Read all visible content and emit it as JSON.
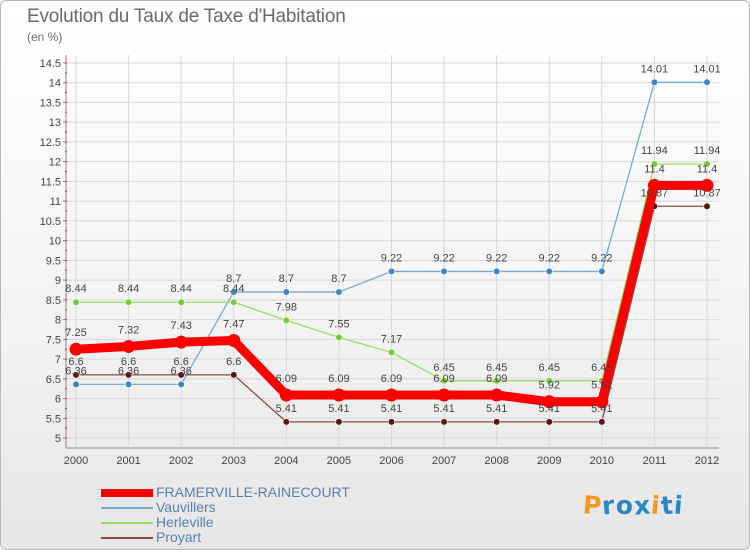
{
  "header": {
    "title": "Evolution du Taux de Taxe d'Habitation",
    "subtitle": "(en %)"
  },
  "logo": {
    "letters": [
      "P",
      "r",
      "o",
      "x",
      "i",
      "t",
      "i"
    ],
    "colors": [
      "#f39a1b",
      "#2b86c7",
      "#2b86c7",
      "#2b86c7",
      "#f39a1b",
      "#2b86c7",
      "#2b86c7"
    ]
  },
  "chart_data": {
    "type": "line",
    "title": "Evolution du Taux de Taxe d'Habitation",
    "ylabel": "(en %)",
    "xlabel": "",
    "x": [
      "2000",
      "2001",
      "2002",
      "2003",
      "2004",
      "2005",
      "2006",
      "2007",
      "2008",
      "2009",
      "2010",
      "2011",
      "2012"
    ],
    "ylim": [
      4.9,
      14.6
    ],
    "yticks": [
      5,
      5.5,
      6,
      6.5,
      7,
      7.5,
      8,
      8.5,
      9,
      9.5,
      10,
      10.5,
      11,
      11.5,
      12,
      12.5,
      13,
      13.5,
      14,
      14.5
    ],
    "grid": true,
    "legend_position": "bottom-left",
    "series": [
      {
        "name": "FRAMERVILLE-RAINECOURT",
        "color": "#ff0000",
        "emphasis": true,
        "values": [
          7.25,
          7.32,
          7.43,
          7.47,
          6.09,
          6.09,
          6.09,
          6.09,
          6.09,
          5.92,
          5.92,
          11.4,
          11.4
        ],
        "labels": [
          "7.25",
          "7.32",
          "7.43",
          "7.47",
          "6.09",
          "6.09",
          "6.09",
          "6.09",
          "6.09",
          "5.92",
          "5.92",
          "11.4",
          "11.4"
        ]
      },
      {
        "name": "Vauvillers",
        "color": "#7aaad2",
        "marker": "#3f85c2",
        "values": [
          6.36,
          6.36,
          6.36,
          8.7,
          8.7,
          8.7,
          9.22,
          9.22,
          9.22,
          9.22,
          9.22,
          14.01,
          14.01
        ],
        "labels": [
          "6.36",
          "6.36",
          "6.36",
          "8.7",
          "8.7",
          "8.7",
          "9.22",
          "9.22",
          "9.22",
          "9.22",
          "9.22",
          "14.01",
          "14.01"
        ]
      },
      {
        "name": "Herleville",
        "color": "#99dd66",
        "marker": "#78c83a",
        "values": [
          8.44,
          8.44,
          8.44,
          8.44,
          7.98,
          7.55,
          7.17,
          6.45,
          6.45,
          6.45,
          6.45,
          11.94,
          11.94
        ],
        "labels": [
          "8.44",
          "8.44",
          "8.44",
          "8.44",
          "7.98",
          "7.55",
          "7.17",
          "6.45",
          "6.45",
          "6.45",
          "6.45",
          "11.94",
          "11.94"
        ]
      },
      {
        "name": "Proyart",
        "color": "#8a4a4a",
        "marker": "#5a1414",
        "values": [
          6.6,
          6.6,
          6.6,
          6.6,
          5.41,
          5.41,
          5.41,
          5.41,
          5.41,
          5.41,
          5.41,
          10.87,
          10.87
        ],
        "labels": [
          "6.6",
          "6.6",
          "6.6",
          "6.6",
          "5.41",
          "5.41",
          "5.41",
          "5.41",
          "5.41",
          "5.41",
          "5.41",
          "10.87",
          "10.87"
        ]
      }
    ]
  }
}
